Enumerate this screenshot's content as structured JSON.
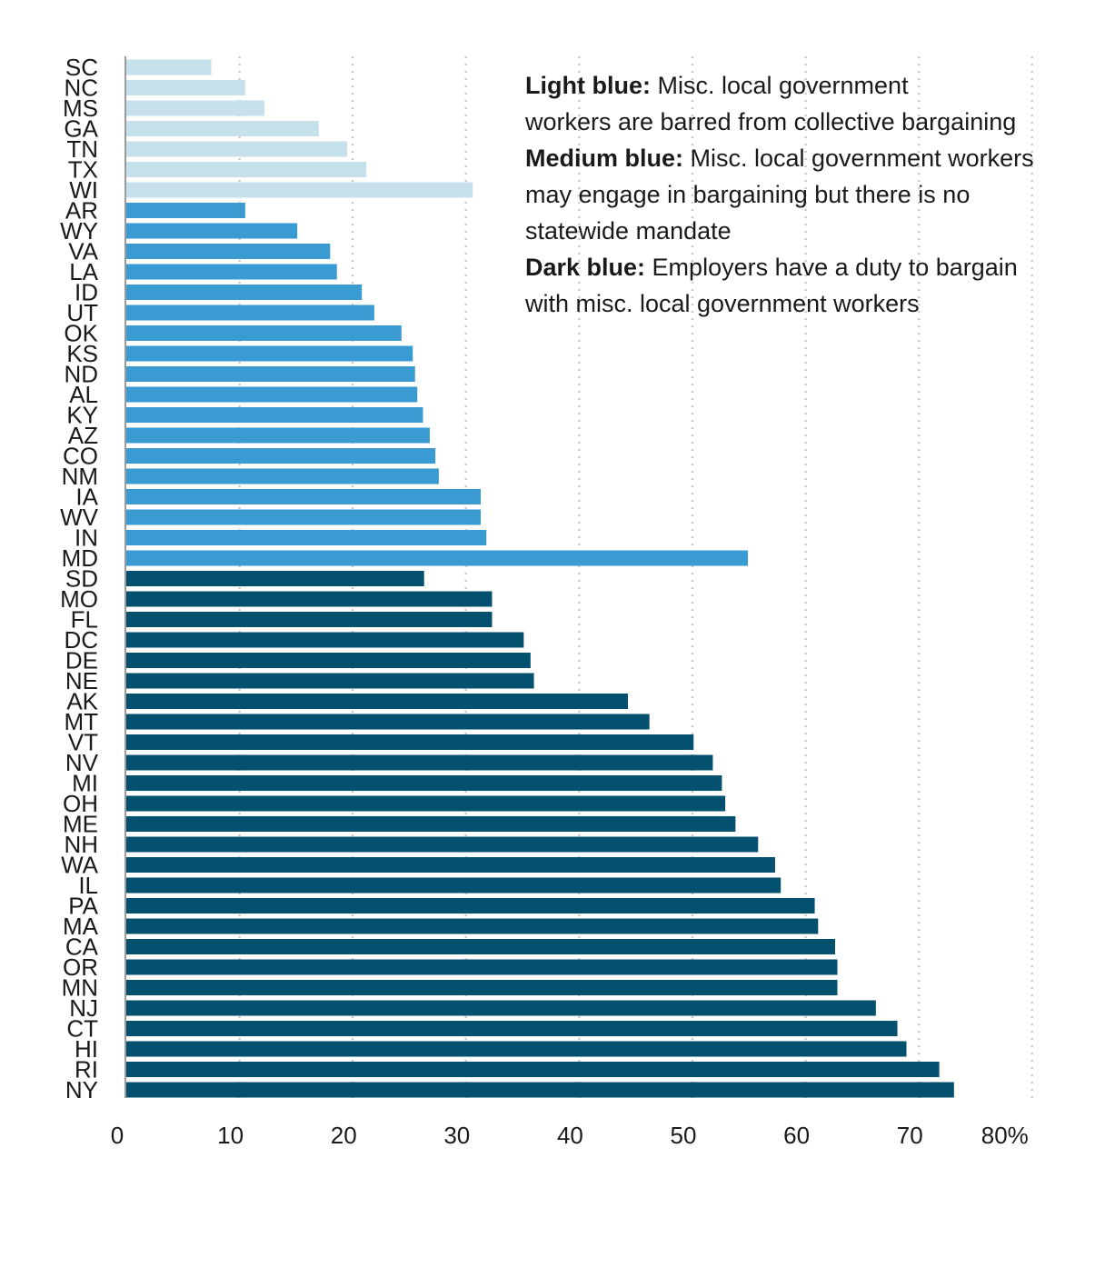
{
  "chart_data": {
    "type": "bar",
    "orientation": "horizontal",
    "categories": [
      "SC",
      "NC",
      "MS",
      "GA",
      "TN",
      "TX",
      "WI",
      "AR",
      "WY",
      "VA",
      "LA",
      "ID",
      "UT",
      "OK",
      "KS",
      "ND",
      "AL",
      "KY",
      "AZ",
      "CO",
      "NM",
      "IA",
      "WV",
      "IN",
      "MD",
      "SD",
      "MO",
      "FL",
      "DC",
      "DE",
      "NE",
      "AK",
      "MT",
      "VT",
      "NV",
      "MI",
      "OH",
      "ME",
      "NH",
      "WA",
      "IL",
      "PA",
      "MA",
      "CA",
      "OR",
      "MN",
      "NJ",
      "CT",
      "HI",
      "RI",
      "NY"
    ],
    "values": [
      7.5,
      10.5,
      12.2,
      17.0,
      19.5,
      21.2,
      30.6,
      10.5,
      15.1,
      18.0,
      18.6,
      20.8,
      21.9,
      24.3,
      25.3,
      25.5,
      25.7,
      26.2,
      26.8,
      27.3,
      27.6,
      31.3,
      31.3,
      31.8,
      54.9,
      26.3,
      32.3,
      32.3,
      35.1,
      35.7,
      36.0,
      44.3,
      46.2,
      50.1,
      51.8,
      52.6,
      52.9,
      53.8,
      55.8,
      57.3,
      57.8,
      60.8,
      61.1,
      62.6,
      62.8,
      62.8,
      66.2,
      68.1,
      68.9,
      71.8,
      73.1
    ],
    "groups": [
      "light",
      "light",
      "light",
      "light",
      "light",
      "light",
      "light",
      "medium",
      "medium",
      "medium",
      "medium",
      "medium",
      "medium",
      "medium",
      "medium",
      "medium",
      "medium",
      "medium",
      "medium",
      "medium",
      "medium",
      "medium",
      "medium",
      "medium",
      "medium",
      "dark",
      "dark",
      "dark",
      "dark",
      "dark",
      "dark",
      "dark",
      "dark",
      "dark",
      "dark",
      "dark",
      "dark",
      "dark",
      "dark",
      "dark",
      "dark",
      "dark",
      "dark",
      "dark",
      "dark",
      "dark",
      "dark",
      "dark",
      "dark",
      "dark",
      "dark"
    ],
    "colors": {
      "light": "#c6e0ec",
      "medium": "#3a9bd2",
      "dark": "#04506f"
    },
    "xlim": [
      0,
      80
    ],
    "xticks": [
      "0",
      "10",
      "20",
      "30",
      "40",
      "50",
      "60",
      "70",
      "80%"
    ],
    "grid": "vertical-dotted",
    "title": "",
    "xlabel": "",
    "ylabel": ""
  },
  "legend": {
    "light": {
      "label": "Light blue:",
      "line1": " Misc. local government",
      "line2": "workers are barred from collective bargaining"
    },
    "medium": {
      "label": "Medium blue:",
      "line1": " Misc. local government workers",
      "line2": "may engage in bargaining but there is no",
      "line3": "statewide mandate"
    },
    "dark": {
      "label": "Dark blue:",
      "line1": " Employers have a duty to bargain",
      "line2": "with misc. local government workers"
    }
  }
}
